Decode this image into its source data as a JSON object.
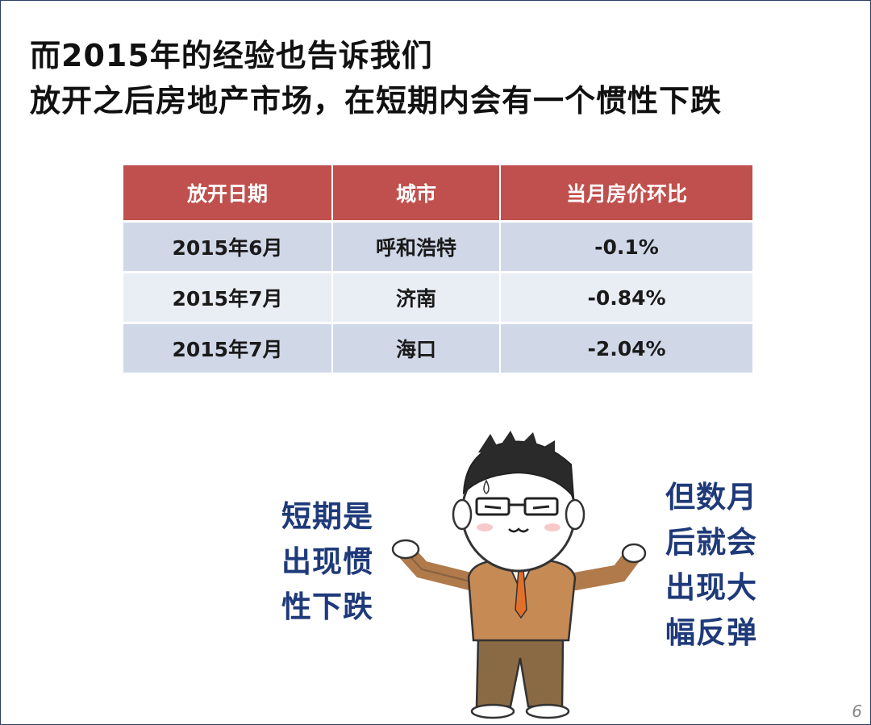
{
  "title": {
    "line1": "而2015年的经验也告诉我们",
    "line2": "放开之后房地产市场，在短期内会有一个惯性下跌"
  },
  "table": {
    "headers": [
      "放开日期",
      "城市",
      "当月房价环比"
    ],
    "rows": [
      [
        "2015年6月",
        "呼和浩特",
        "-0.1%"
      ],
      [
        "2015年7月",
        "济南",
        "-0.84%"
      ],
      [
        "2015年7月",
        "海口",
        "-2.04%"
      ]
    ]
  },
  "callouts": {
    "left": [
      "短期是",
      "出现惯",
      "性下跌"
    ],
    "right": [
      "但数月",
      "后就会",
      "出现大",
      "幅反弹"
    ]
  },
  "page_number": "6",
  "colors": {
    "header_bg": "#c0504d",
    "row_odd": "#d0d8e8",
    "row_even": "#e9edf4",
    "callout_text": "#1f3a7a"
  }
}
